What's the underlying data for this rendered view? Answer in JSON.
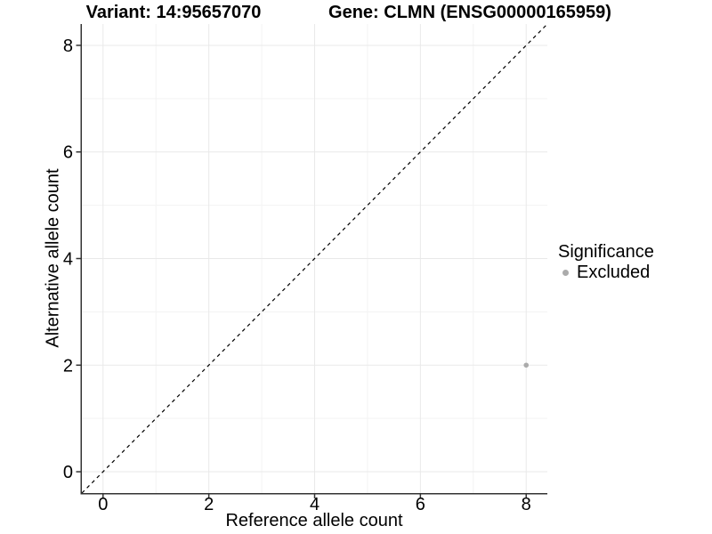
{
  "chart_data": {
    "type": "scatter",
    "title_left": "Variant: 14:95657070",
    "title_right": "Gene: CLMN (ENSG00000165959)",
    "xlabel": "Reference allele count",
    "ylabel": "Alternative allele count",
    "xlim": [
      -0.4,
      8.4
    ],
    "ylim": [
      -0.4,
      8.4
    ],
    "x_ticks_major": [
      0,
      2,
      4,
      6,
      8
    ],
    "x_ticks_minor": [
      1,
      3,
      5,
      7
    ],
    "y_ticks_major": [
      0,
      2,
      4,
      6,
      8
    ],
    "y_ticks_minor": [
      1,
      3,
      5,
      7
    ],
    "grid": "on",
    "reference_line": {
      "type": "identity",
      "slope": 1,
      "intercept": 0,
      "style": "dashed",
      "color": "#000000"
    },
    "points": [
      {
        "x": 8,
        "y": 2,
        "series": "Excluded"
      }
    ],
    "legend": {
      "title": "Significance",
      "position": "right",
      "entries": [
        {
          "label": "Excluded",
          "color": "#ababab",
          "marker": "circle"
        }
      ]
    }
  },
  "colors": {
    "point": "#ababab",
    "grid_major": "#e9e9e9",
    "grid_minor": "#f3f3f3",
    "axis_line": "#333333",
    "tick_mark": "#333333",
    "text": "#000000"
  }
}
